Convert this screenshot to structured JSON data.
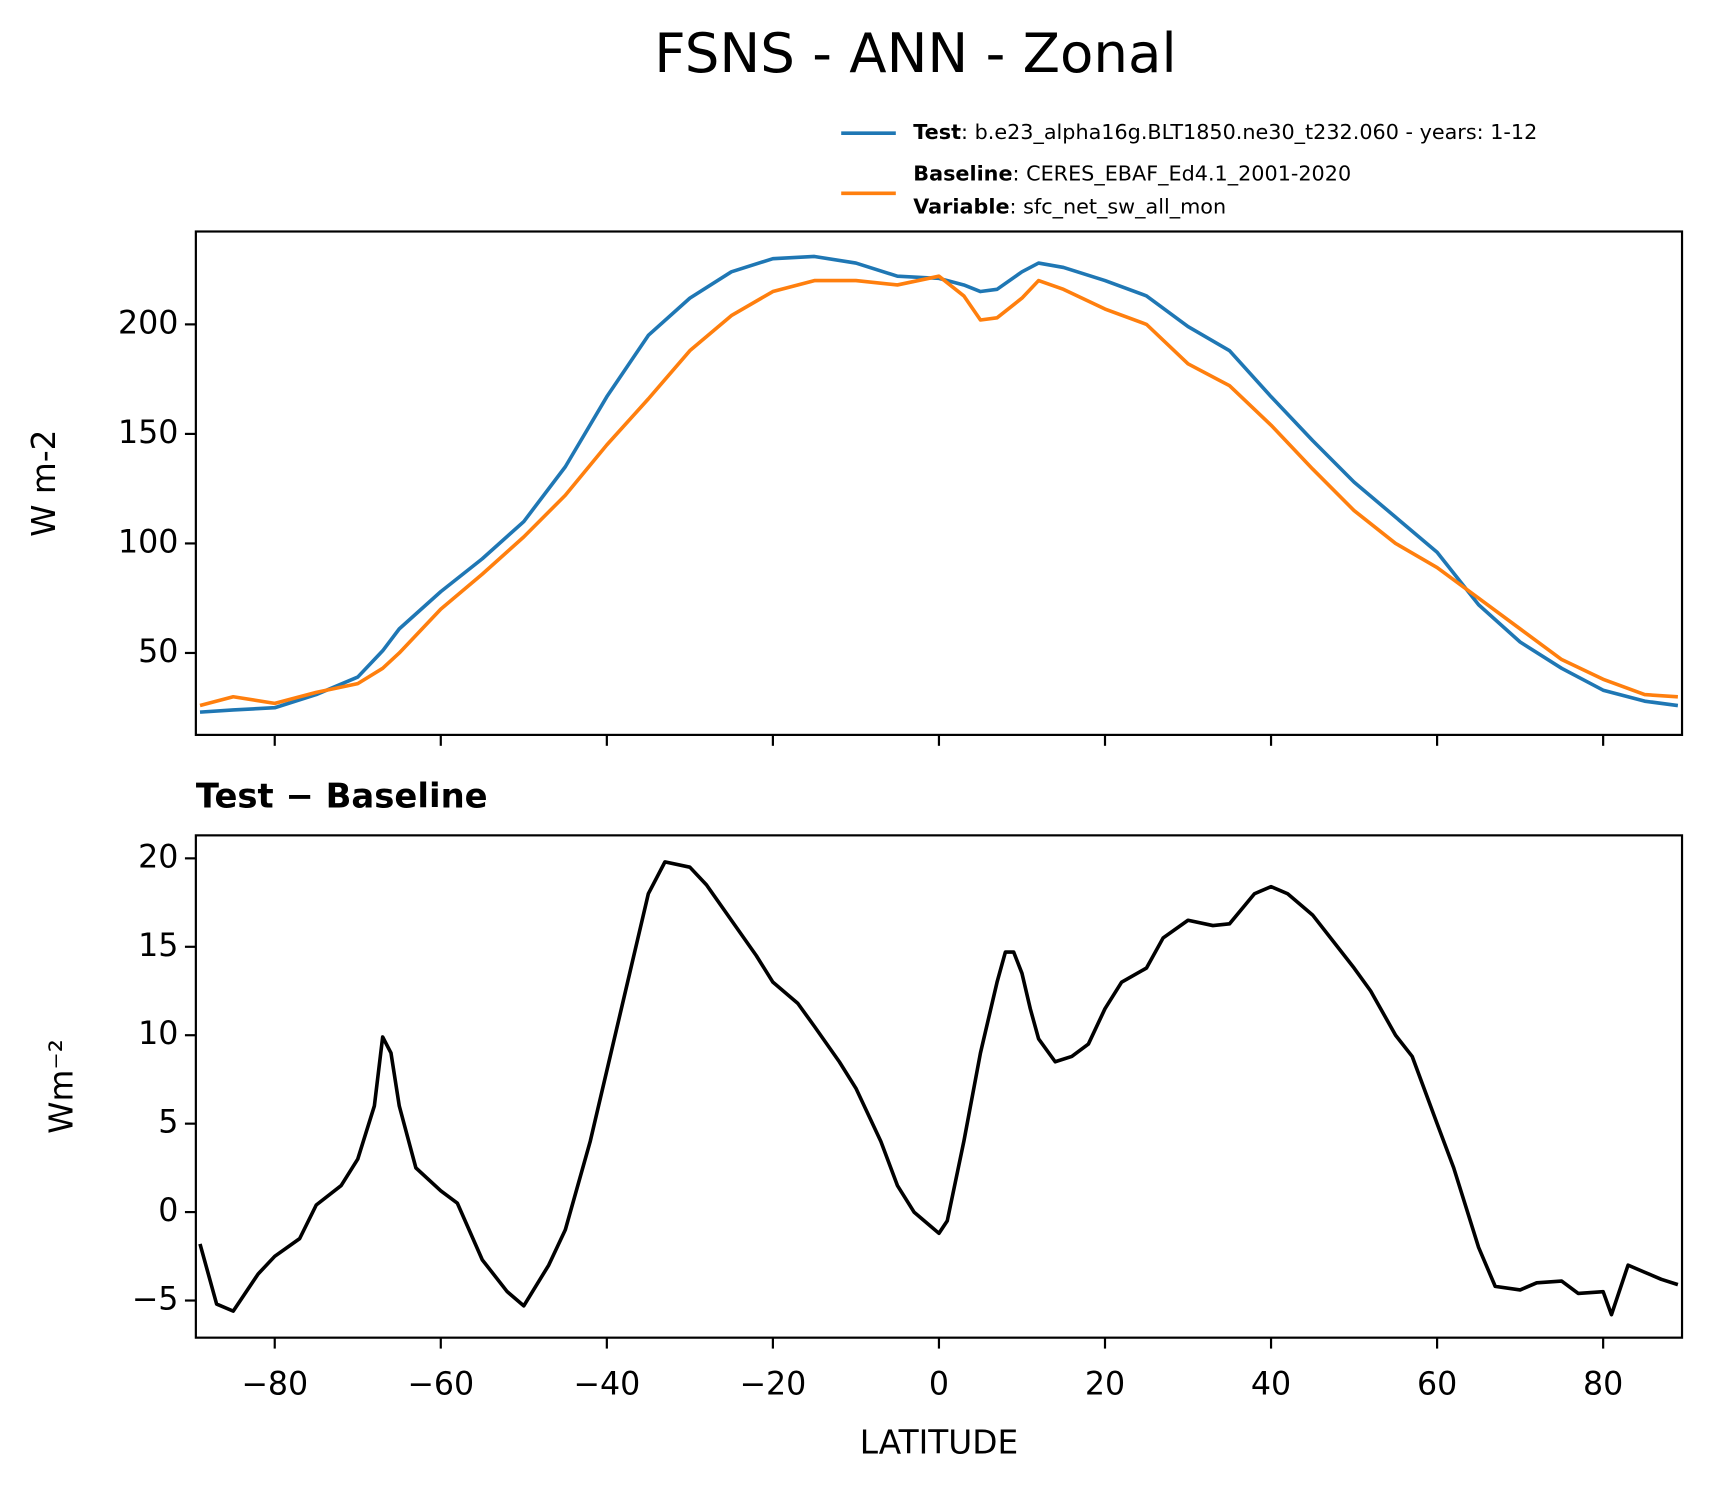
{
  "title": "FSNS - ANN - Zonal",
  "chart_data": [
    {
      "type": "line",
      "ylabel": "W m-2",
      "x": [
        -89,
        -85,
        -80,
        -75,
        -70,
        -67,
        -65,
        -60,
        -55,
        -50,
        -45,
        -40,
        -35,
        -30,
        -25,
        -20,
        -15,
        -10,
        -5,
        0,
        3,
        5,
        7,
        10,
        12,
        15,
        20,
        25,
        30,
        35,
        40,
        45,
        50,
        55,
        60,
        65,
        70,
        75,
        80,
        85,
        89
      ],
      "series": [
        {
          "name": "Test",
          "label": ": b.e23_alpha16g.BLT1850.ne30_t232.060 - years: 1-12",
          "color": "#1f77b4",
          "values": [
            23,
            24,
            25,
            31,
            39,
            51,
            61,
            78,
            93,
            110,
            135,
            167,
            195,
            212,
            224,
            230,
            231,
            228,
            222,
            221,
            218,
            215,
            216,
            224,
            228,
            226,
            220,
            213,
            199,
            188,
            167,
            147,
            128,
            112,
            96,
            72,
            55,
            43,
            33,
            28,
            26
          ]
        },
        {
          "name": "Baseline",
          "label": ": CERES_EBAF_Ed4.1_2001-2020",
          "extra_name": "Variable",
          "extra_label": ": sfc_net_sw_all_mon",
          "color": "#ff7f0e",
          "values": [
            26,
            30,
            27,
            32,
            36,
            43,
            50,
            70,
            86,
            103,
            122,
            145,
            166,
            188,
            204,
            215,
            220,
            220,
            218,
            222,
            213,
            202,
            203,
            212,
            220,
            216,
            207,
            200,
            182,
            172,
            154,
            134,
            115,
            100,
            89,
            75,
            61,
            47,
            38,
            31,
            30
          ]
        }
      ],
      "xlim": [
        -89.5,
        89.5
      ],
      "ylim": [
        12.6,
        242.4
      ],
      "xticks": [
        -80,
        -60,
        -40,
        -20,
        0,
        20,
        40,
        60,
        80
      ],
      "xtick_labels": false,
      "yticks": [
        50,
        100,
        150,
        200
      ]
    },
    {
      "type": "line",
      "title": "Test − Baseline",
      "xlabel": "LATITUDE",
      "ylabel": "Wm⁻²",
      "x": [
        -89,
        -87,
        -85,
        -82,
        -80,
        -77,
        -75,
        -72,
        -70,
        -68,
        -67,
        -66,
        -65,
        -63,
        -60,
        -58,
        -55,
        -52,
        -50,
        -47,
        -45,
        -42,
        -40,
        -37,
        -35,
        -33,
        -30,
        -28,
        -25,
        -22,
        -20,
        -17,
        -15,
        -12,
        -10,
        -7,
        -5,
        -3,
        -1,
        0,
        1,
        3,
        5,
        7,
        8,
        9,
        10,
        11,
        12,
        14,
        16,
        18,
        20,
        22,
        25,
        27,
        30,
        33,
        35,
        38,
        40,
        42,
        45,
        48,
        50,
        52,
        55,
        57,
        60,
        62,
        65,
        67,
        70,
        72,
        75,
        77,
        80,
        81,
        83,
        85,
        87,
        89
      ],
      "values": [
        -1.8,
        -5.2,
        -5.6,
        -3.5,
        -2.5,
        -1.5,
        0.4,
        1.5,
        3,
        6,
        9.9,
        9,
        6,
        2.5,
        1.2,
        0.5,
        -2.7,
        -4.5,
        -5.3,
        -3,
        -1,
        4,
        8,
        14,
        18,
        19.8,
        19.5,
        18.5,
        16.5,
        14.5,
        13,
        11.8,
        10.5,
        8.5,
        7,
        4,
        1.5,
        0,
        -0.8,
        -1.2,
        -0.5,
        4,
        9,
        13,
        14.7,
        14.7,
        13.5,
        11.5,
        9.8,
        8.5,
        8.8,
        9.5,
        11.5,
        13,
        13.8,
        15.5,
        16.5,
        16.2,
        16.3,
        18,
        18.4,
        18,
        16.8,
        15,
        13.8,
        12.5,
        10,
        8.8,
        5,
        2.5,
        -2,
        -4.2,
        -4.4,
        -4,
        -3.9,
        -4.6,
        -4.5,
        -5.8,
        -3,
        -3.4,
        -3.8,
        -4.1
      ],
      "color": "#000000",
      "xlim": [
        -89.5,
        89.5
      ],
      "ylim": [
        -7.1,
        21.3
      ],
      "xticks": [
        {
          "value": -80,
          "label": "−80"
        },
        {
          "value": -60,
          "label": "−60"
        },
        {
          "value": -40,
          "label": "−40"
        },
        {
          "value": -20,
          "label": "−20"
        },
        0,
        20,
        40,
        60,
        80
      ],
      "yticks": [
        {
          "value": -5,
          "label": "−5"
        },
        0,
        5,
        10,
        15,
        20
      ]
    }
  ]
}
